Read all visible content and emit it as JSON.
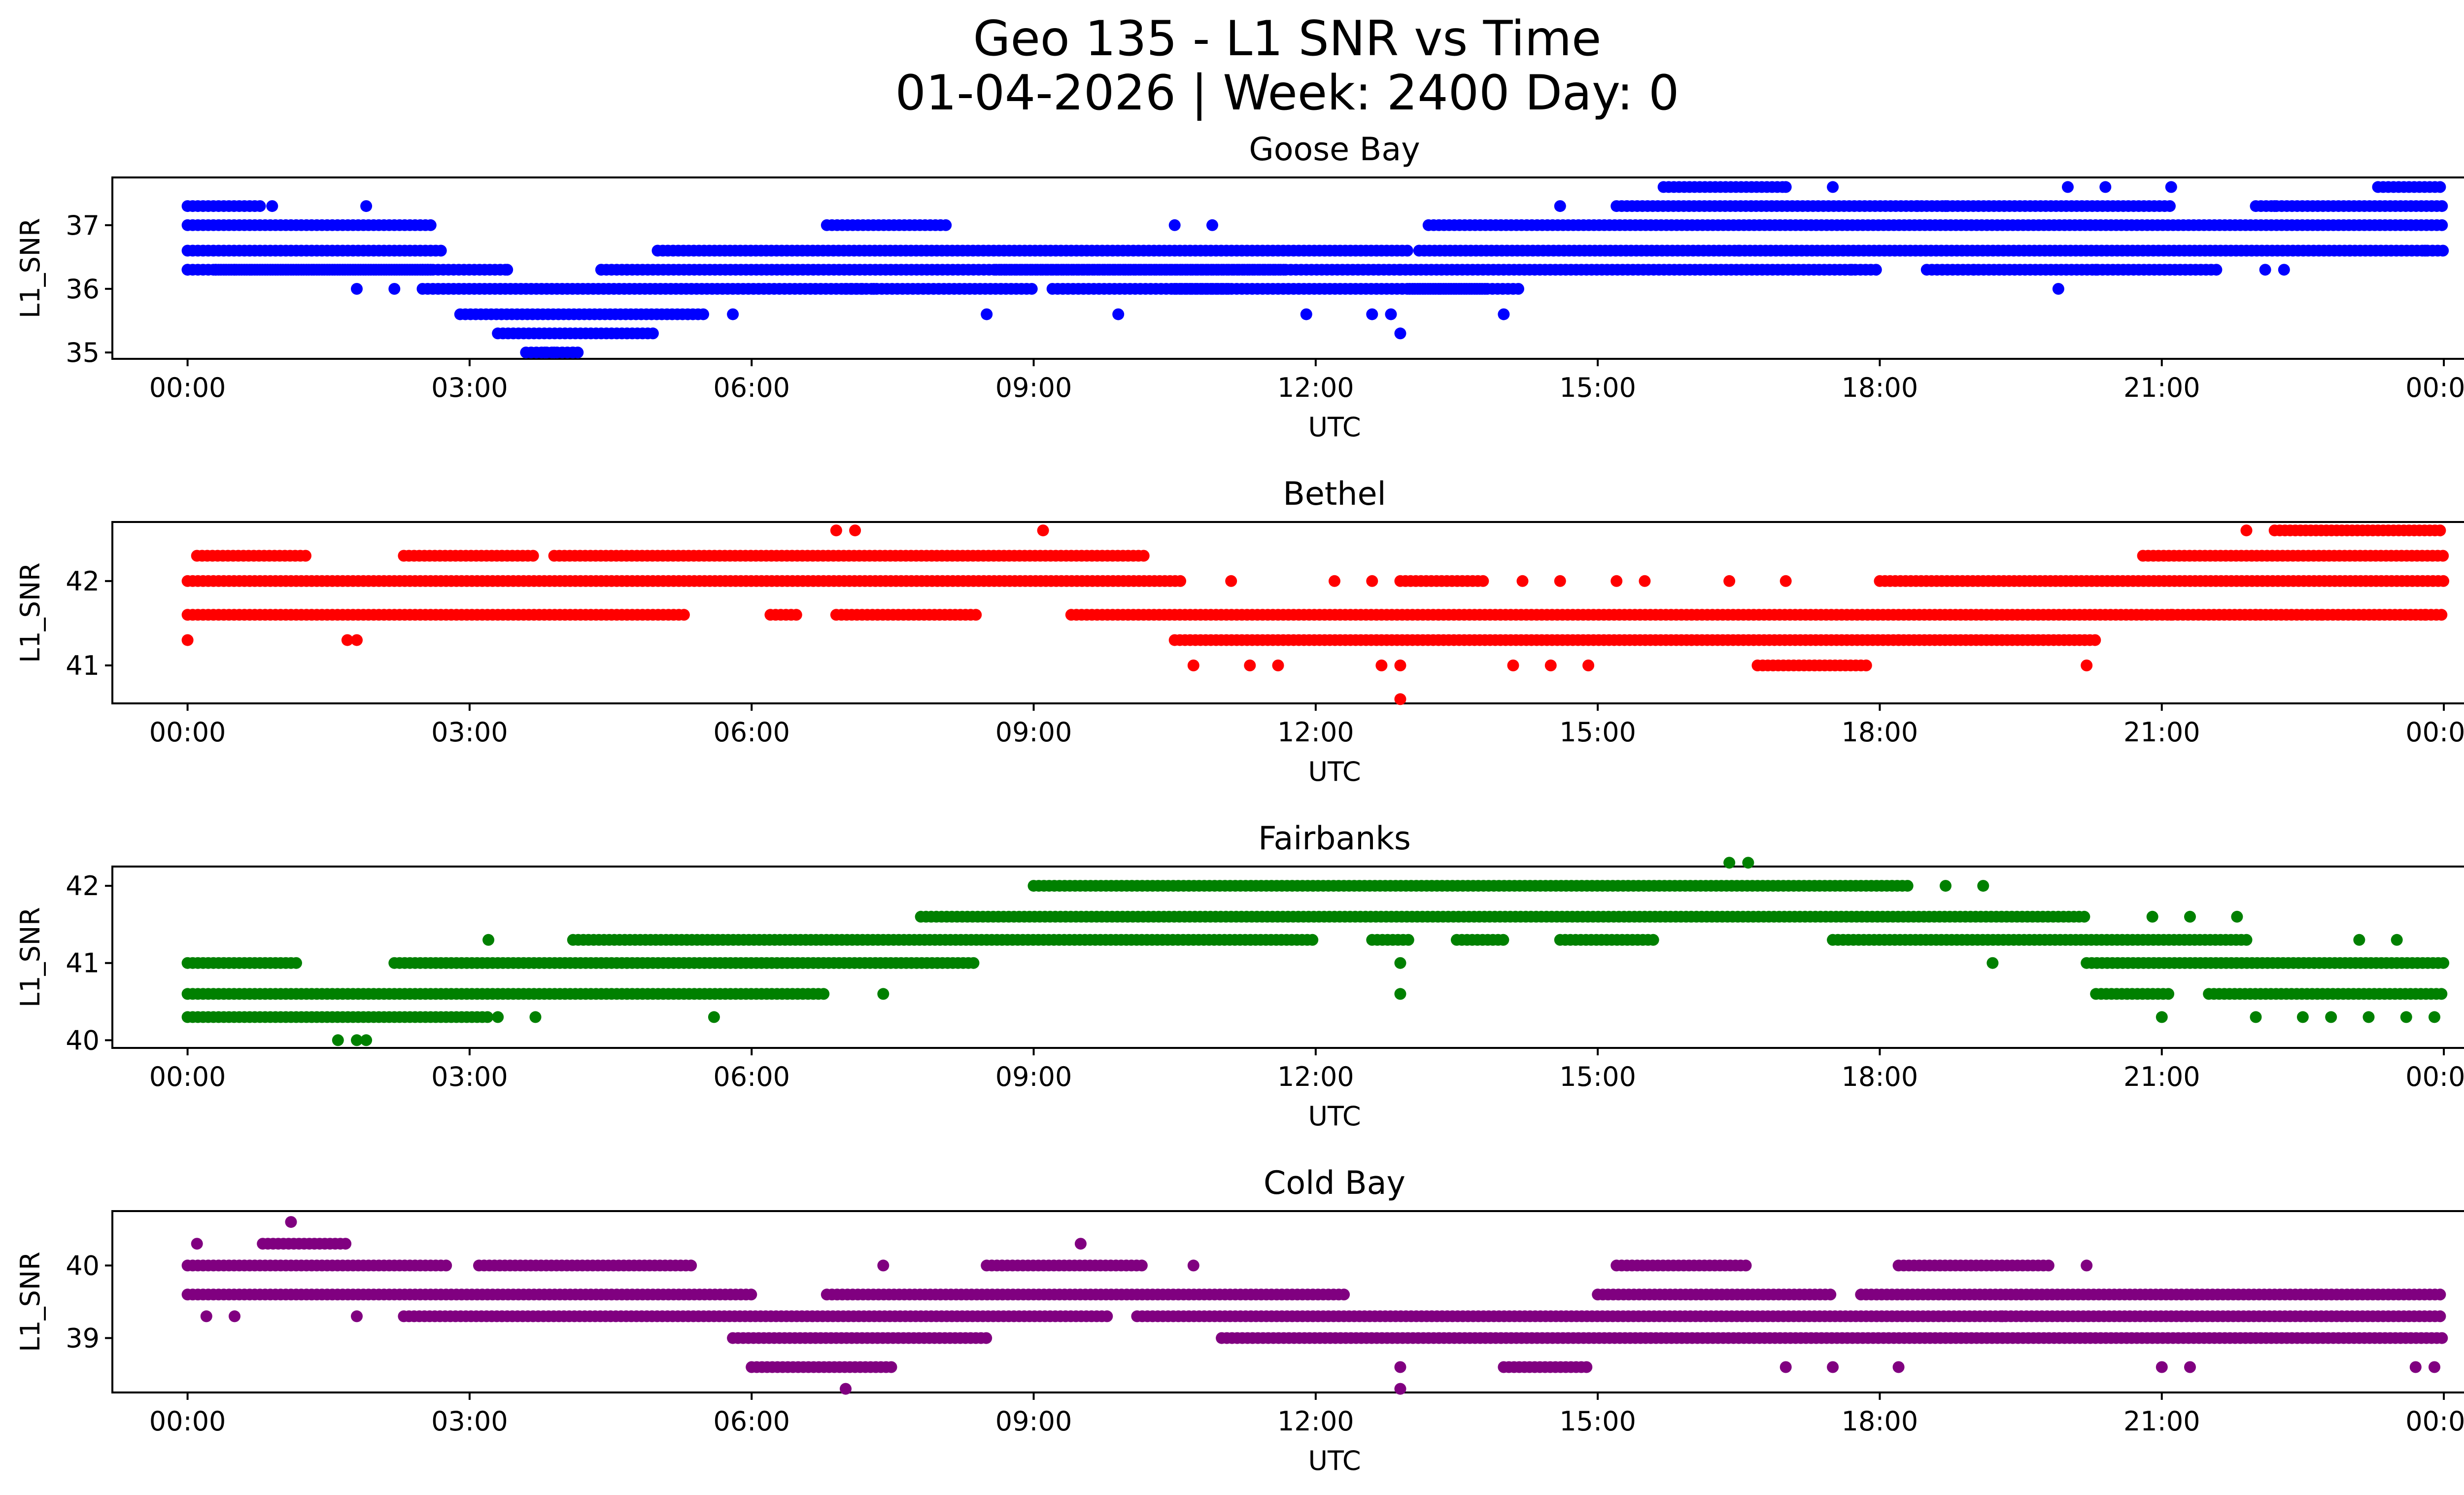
{
  "figure": {
    "title_line1": "Geo 135 - L1 SNR vs Time",
    "title_line2": "01-04-2026 | Week: 2400 Day: 0"
  },
  "chart_data": [
    {
      "type": "scatter",
      "title": "Goose Bay",
      "xlabel": "UTC",
      "ylabel": "L1_SNR",
      "color": "#0000ff",
      "xlim_hours": [
        -0.8,
        25.2
      ],
      "ylim": [
        34.9,
        37.75
      ],
      "y_ticks": [
        35,
        36,
        37
      ],
      "x_ticks_hours": [
        0,
        3,
        6,
        9,
        12,
        15,
        18,
        21,
        24
      ],
      "x_tick_labels": [
        "00:00",
        "03:00",
        "06:00",
        "09:00",
        "12:00",
        "15:00",
        "18:00",
        "21:00",
        "00:00"
      ],
      "segments": [
        [
          0.0,
          2.6,
          37.0
        ],
        [
          0.0,
          2.7,
          36.6
        ],
        [
          0.0,
          0.8,
          37.3
        ],
        [
          0.0,
          2.6,
          36.3
        ],
        [
          0.3,
          2.6,
          36.3
        ],
        [
          2.5,
          3.4,
          36.3
        ],
        [
          2.5,
          7.2,
          36.0
        ],
        [
          2.9,
          5.5,
          35.6
        ],
        [
          3.3,
          5.0,
          35.3
        ],
        [
          3.6,
          4.2,
          35.0
        ],
        [
          4.4,
          11.7,
          36.3
        ],
        [
          5.0,
          13.0,
          36.6
        ],
        [
          6.8,
          8.1,
          37.0
        ],
        [
          8.6,
          12.9,
          36.3
        ],
        [
          7.0,
          9.0,
          36.0
        ],
        [
          9.2,
          11.1,
          36.0
        ],
        [
          10.5,
          13.8,
          36.0
        ],
        [
          12.9,
          18.0,
          36.3
        ],
        [
          13.1,
          24.0,
          36.6
        ],
        [
          13.0,
          14.2,
          36.0
        ],
        [
          13.2,
          24.0,
          37.0
        ],
        [
          15.2,
          21.1,
          37.3
        ],
        [
          15.7,
          17.0,
          37.6
        ],
        [
          18.5,
          21.6,
          36.3
        ],
        [
          22.0,
          24.0,
          37.3
        ],
        [
          23.3,
          24.0,
          37.6
        ]
      ],
      "points": [
        [
          0.0,
          36.3
        ],
        [
          0.3,
          36.3
        ],
        [
          0.5,
          36.3
        ],
        [
          0.9,
          37.3
        ],
        [
          1.8,
          36.0
        ],
        [
          1.9,
          37.3
        ],
        [
          2.2,
          36.0
        ],
        [
          3.4,
          36.3
        ],
        [
          3.8,
          35.0
        ],
        [
          3.9,
          35.0
        ],
        [
          4.1,
          35.0
        ],
        [
          4.4,
          36.3
        ],
        [
          5.8,
          35.6
        ],
        [
          7.3,
          36.0
        ],
        [
          8.5,
          35.6
        ],
        [
          9.9,
          35.6
        ],
        [
          10.5,
          37.0
        ],
        [
          10.9,
          37.0
        ],
        [
          11.9,
          35.6
        ],
        [
          12.6,
          35.6
        ],
        [
          12.8,
          35.6
        ],
        [
          12.9,
          35.3
        ],
        [
          14.0,
          35.6
        ],
        [
          14.6,
          37.3
        ],
        [
          16.5,
          36.6
        ],
        [
          17.7,
          36.3
        ],
        [
          19.0,
          36.3
        ],
        [
          19.9,
          36.0
        ],
        [
          20.0,
          37.6
        ],
        [
          20.4,
          37.6
        ],
        [
          20.3,
          36.3
        ],
        [
          21.1,
          37.6
        ],
        [
          22.2,
          37.3
        ],
        [
          22.1,
          36.3
        ],
        [
          22.3,
          36.3
        ],
        [
          23.0,
          36.6
        ],
        [
          23.8,
          36.6
        ],
        [
          17.0,
          37.6
        ],
        [
          17.5,
          37.6
        ],
        [
          18.4,
          37.3
        ],
        [
          18.7,
          37.3
        ]
      ]
    },
    {
      "type": "scatter",
      "title": "Bethel",
      "xlabel": "UTC",
      "ylabel": "L1_SNR",
      "color": "#ff0000",
      "xlim_hours": [
        -0.8,
        25.2
      ],
      "ylim": [
        40.55,
        42.7
      ],
      "y_ticks": [
        41,
        42
      ],
      "x_ticks_hours": [
        0,
        3,
        6,
        9,
        12,
        15,
        18,
        21,
        24
      ],
      "x_tick_labels": [
        "00:00",
        "03:00",
        "06:00",
        "09:00",
        "12:00",
        "15:00",
        "18:00",
        "21:00",
        "00:00"
      ],
      "segments": [
        [
          0.0,
          10.6,
          42.0
        ],
        [
          0.0,
          5.3,
          41.6
        ],
        [
          0.1,
          1.3,
          42.3
        ],
        [
          2.3,
          3.7,
          42.3
        ],
        [
          3.9,
          10.2,
          42.3
        ],
        [
          6.2,
          6.5,
          41.6
        ],
        [
          6.9,
          8.4,
          41.6
        ],
        [
          9.4,
          24.0,
          41.6
        ],
        [
          10.5,
          20.3,
          41.3
        ],
        [
          12.9,
          13.8,
          42.0
        ],
        [
          16.7,
          17.9,
          41.0
        ],
        [
          18.0,
          24.0,
          42.0
        ],
        [
          20.8,
          24.0,
          42.3
        ],
        [
          22.2,
          24.0,
          42.6
        ]
      ],
      "points": [
        [
          0.0,
          41.3
        ],
        [
          1.7,
          41.3
        ],
        [
          1.8,
          41.3
        ],
        [
          6.9,
          42.6
        ],
        [
          7.1,
          42.6
        ],
        [
          9.1,
          42.6
        ],
        [
          10.7,
          41.0
        ],
        [
          11.3,
          41.0
        ],
        [
          11.6,
          41.0
        ],
        [
          11.1,
          42.0
        ],
        [
          12.2,
          42.0
        ],
        [
          12.6,
          42.0
        ],
        [
          12.7,
          41.0
        ],
        [
          12.9,
          41.0
        ],
        [
          12.9,
          40.6
        ],
        [
          14.1,
          41.0
        ],
        [
          14.5,
          41.0
        ],
        [
          14.9,
          41.0
        ],
        [
          14.2,
          42.0
        ],
        [
          14.6,
          42.0
        ],
        [
          15.2,
          42.0
        ],
        [
          15.5,
          42.0
        ],
        [
          16.4,
          42.0
        ],
        [
          17.0,
          42.0
        ],
        [
          18.2,
          41.3
        ],
        [
          20.2,
          41.0
        ],
        [
          21.1,
          41.6
        ],
        [
          21.9,
          42.6
        ],
        [
          22.0,
          41.6
        ],
        [
          22.7,
          41.6
        ],
        [
          23.8,
          41.6
        ]
      ]
    },
    {
      "type": "scatter",
      "title": "Fairbanks",
      "xlabel": "UTC",
      "ylabel": "L1_SNR",
      "color": "#008000",
      "xlim_hours": [
        -0.8,
        25.2
      ],
      "ylim": [
        39.9,
        42.25
      ],
      "y_ticks": [
        40,
        41,
        42
      ],
      "x_ticks_hours": [
        0,
        3,
        6,
        9,
        12,
        15,
        18,
        21,
        24
      ],
      "x_tick_labels": [
        "00:00",
        "03:00",
        "06:00",
        "09:00",
        "12:00",
        "15:00",
        "18:00",
        "21:00",
        "00:00"
      ],
      "segments": [
        [
          0.0,
          1.2,
          41.0
        ],
        [
          0.0,
          6.8,
          40.6
        ],
        [
          0.0,
          3.2,
          40.3
        ],
        [
          2.2,
          8.4,
          41.0
        ],
        [
          4.1,
          12.0,
          41.3
        ],
        [
          7.8,
          20.2,
          41.6
        ],
        [
          9.0,
          18.3,
          42.0
        ],
        [
          12.6,
          13.0,
          41.3
        ],
        [
          13.5,
          14.0,
          41.3
        ],
        [
          14.6,
          15.6,
          41.3
        ],
        [
          17.5,
          21.9,
          41.3
        ],
        [
          20.2,
          24.0,
          41.0
        ],
        [
          20.3,
          21.1,
          40.6
        ],
        [
          21.5,
          24.0,
          40.6
        ]
      ],
      "points": [
        [
          1.6,
          40.0
        ],
        [
          1.8,
          40.0
        ],
        [
          1.9,
          40.0
        ],
        [
          3.2,
          41.3
        ],
        [
          3.3,
          40.3
        ],
        [
          3.7,
          40.3
        ],
        [
          5.6,
          40.3
        ],
        [
          7.4,
          40.6
        ],
        [
          12.9,
          41.0
        ],
        [
          12.9,
          40.6
        ],
        [
          16.4,
          42.3
        ],
        [
          16.6,
          42.3
        ],
        [
          18.7,
          42.0
        ],
        [
          19.1,
          42.0
        ],
        [
          19.2,
          41.0
        ],
        [
          21.0,
          40.3
        ],
        [
          20.9,
          41.6
        ],
        [
          21.3,
          41.6
        ],
        [
          21.8,
          41.6
        ],
        [
          22.0,
          40.3
        ],
        [
          22.5,
          40.3
        ],
        [
          22.8,
          40.3
        ],
        [
          23.2,
          40.3
        ],
        [
          23.6,
          40.3
        ],
        [
          23.9,
          40.3
        ],
        [
          23.1,
          41.3
        ],
        [
          23.5,
          41.3
        ]
      ]
    },
    {
      "type": "scatter",
      "title": "Cold Bay",
      "xlabel": "UTC",
      "ylabel": "L1_SNR",
      "color": "#800080",
      "xlim_hours": [
        -0.8,
        25.2
      ],
      "ylim": [
        38.25,
        40.75
      ],
      "y_ticks": [
        39,
        40
      ],
      "x_ticks_hours": [
        0,
        3,
        6,
        9,
        12,
        15,
        18,
        21,
        24
      ],
      "x_tick_labels": [
        "00:00",
        "03:00",
        "06:00",
        "09:00",
        "12:00",
        "15:00",
        "18:00",
        "21:00",
        "00:00"
      ],
      "segments": [
        [
          0.0,
          6.0,
          39.6
        ],
        [
          0.0,
          2.8,
          40.0
        ],
        [
          0.8,
          1.7,
          40.3
        ],
        [
          2.3,
          9.8,
          39.3
        ],
        [
          3.1,
          5.4,
          40.0
        ],
        [
          5.8,
          8.5,
          39.0
        ],
        [
          6.8,
          12.3,
          39.6
        ],
        [
          8.5,
          10.2,
          40.0
        ],
        [
          10.1,
          24.0,
          39.3
        ],
        [
          11.0,
          24.0,
          39.0
        ],
        [
          6.0,
          7.5,
          38.6
        ],
        [
          14.0,
          14.9,
          38.6
        ],
        [
          15.2,
          16.6,
          40.0
        ],
        [
          15.0,
          17.5,
          39.6
        ],
        [
          17.8,
          24.0,
          39.6
        ],
        [
          18.2,
          19.8,
          40.0
        ]
      ],
      "points": [
        [
          0.1,
          40.3
        ],
        [
          1.1,
          40.6
        ],
        [
          0.2,
          39.3
        ],
        [
          0.5,
          39.3
        ],
        [
          1.8,
          39.3
        ],
        [
          7.0,
          38.3
        ],
        [
          7.4,
          40.0
        ],
        [
          9.5,
          40.3
        ],
        [
          10.7,
          40.0
        ],
        [
          12.9,
          38.6
        ],
        [
          12.9,
          38.3
        ],
        [
          17.0,
          38.6
        ],
        [
          17.5,
          38.6
        ],
        [
          18.2,
          38.6
        ],
        [
          19.3,
          39.3
        ],
        [
          20.2,
          40.0
        ],
        [
          21.0,
          38.6
        ],
        [
          21.3,
          38.6
        ],
        [
          23.7,
          38.6
        ],
        [
          23.9,
          38.6
        ]
      ]
    }
  ]
}
